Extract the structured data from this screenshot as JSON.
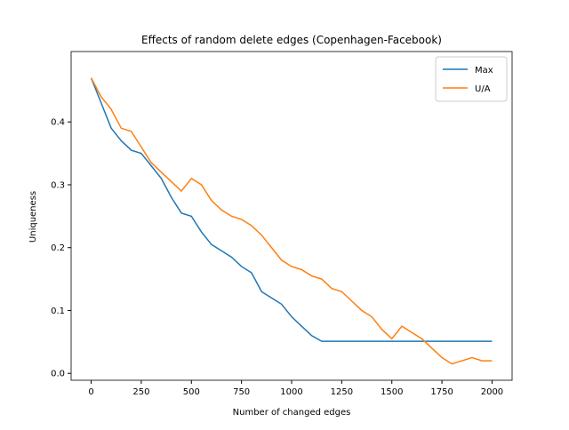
{
  "chart_data": {
    "type": "line",
    "title": "Effects of random delete edges (Copenhagen-Facebook)",
    "xlabel": "Number of changed edges",
    "ylabel": "Uniqueness",
    "x": [
      0,
      50,
      100,
      150,
      200,
      250,
      300,
      350,
      400,
      450,
      500,
      550,
      600,
      650,
      700,
      750,
      800,
      850,
      900,
      950,
      1000,
      1050,
      1100,
      1150,
      1200,
      1250,
      1300,
      1350,
      1400,
      1450,
      1500,
      1550,
      1600,
      1650,
      1700,
      1750,
      1800,
      1850,
      1900,
      1950,
      2000
    ],
    "series": [
      {
        "name": "Max",
        "color": "#1f77b4",
        "values": [
          0.47,
          0.43,
          0.39,
          0.37,
          0.355,
          0.35,
          0.33,
          0.31,
          0.28,
          0.255,
          0.25,
          0.225,
          0.205,
          0.195,
          0.185,
          0.17,
          0.16,
          0.13,
          0.12,
          0.11,
          0.09,
          0.075,
          0.06,
          0.051,
          0.051,
          0.051,
          0.051,
          0.051,
          0.051,
          0.051,
          0.051,
          0.051,
          0.051,
          0.051,
          0.051,
          0.051,
          0.051,
          0.051,
          0.051,
          0.051,
          0.051
        ]
      },
      {
        "name": "U/A",
        "color": "#ff7f0e",
        "values": [
          0.47,
          0.44,
          0.42,
          0.39,
          0.385,
          0.36,
          0.335,
          0.32,
          0.305,
          0.29,
          0.31,
          0.3,
          0.275,
          0.26,
          0.25,
          0.245,
          0.235,
          0.22,
          0.2,
          0.18,
          0.17,
          0.165,
          0.155,
          0.15,
          0.135,
          0.13,
          0.115,
          0.1,
          0.09,
          0.07,
          0.055,
          0.075,
          0.065,
          0.055,
          0.04,
          0.025,
          0.015,
          0.02,
          0.025,
          0.02,
          0.02
        ]
      }
    ],
    "xlim": [
      -100,
      2100
    ],
    "xticks": [
      0,
      250,
      500,
      750,
      1000,
      1250,
      1500,
      1750,
      2000
    ],
    "ylim": [
      -0.011,
      0.512
    ],
    "yticks": [
      {
        "value": 0,
        "label": "0.0"
      },
      0.1,
      0.2,
      0.3,
      0.4
    ],
    "legend": "upper right"
  }
}
